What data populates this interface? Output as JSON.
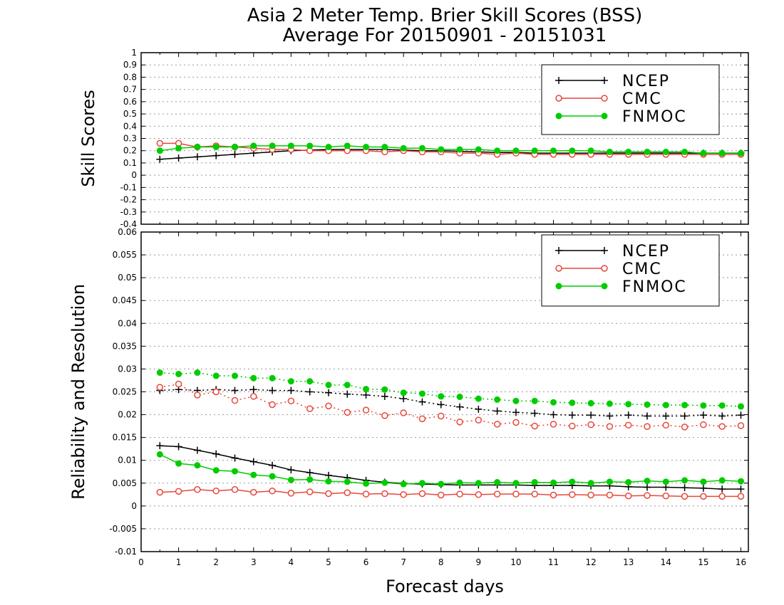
{
  "title": "Asia 2 Meter Temp. Brier Skill Scores (BSS)",
  "subtitle": "Average For 20150901 - 20151031",
  "chart_data": [
    {
      "type": "line",
      "ylabel": "Skill Scores",
      "xlabel": "",
      "xlim": [
        0,
        16.2
      ],
      "ylim": [
        -0.4,
        1.0
      ],
      "yticks": [
        "-0.4",
        "-0.3",
        "-0.2",
        "-0.1",
        "0",
        "0.1",
        "0.2",
        "0.3",
        "0.4",
        "0.5",
        "0.6",
        "0.7",
        "0.8",
        "0.9",
        "1"
      ],
      "grid": true,
      "legend_position": "top-right",
      "x": [
        0.5,
        1,
        1.5,
        2,
        2.5,
        3,
        3.5,
        4,
        4.5,
        5,
        5.5,
        6,
        6.5,
        7,
        7.5,
        8,
        8.5,
        9,
        9.5,
        10,
        10.5,
        11,
        11.5,
        12,
        12.5,
        13,
        13.5,
        14,
        14.5,
        15,
        15.5,
        16
      ],
      "series": [
        {
          "name": "NCEP",
          "color": "#000000",
          "marker": "plus",
          "style": "solid",
          "values": [
            0.13,
            0.14,
            0.15,
            0.16,
            0.17,
            0.18,
            0.19,
            0.2,
            0.205,
            0.21,
            0.21,
            0.21,
            0.21,
            0.205,
            0.2,
            0.2,
            0.195,
            0.19,
            0.185,
            0.185,
            0.18,
            0.18,
            0.18,
            0.18,
            0.18,
            0.18,
            0.18,
            0.18,
            0.18,
            0.18,
            0.18,
            0.18
          ]
        },
        {
          "name": "CMC",
          "color": "#e8473c",
          "marker": "open-circle",
          "style": "solid",
          "values": [
            0.26,
            0.26,
            0.23,
            0.24,
            0.23,
            0.22,
            0.21,
            0.21,
            0.2,
            0.2,
            0.2,
            0.2,
            0.19,
            0.2,
            0.19,
            0.19,
            0.18,
            0.18,
            0.17,
            0.18,
            0.17,
            0.17,
            0.17,
            0.17,
            0.17,
            0.17,
            0.17,
            0.17,
            0.17,
            0.17,
            0.17,
            0.17
          ]
        },
        {
          "name": "FNMOC",
          "color": "#00cc00",
          "marker": "filled-circle",
          "style": "solid",
          "values": [
            0.2,
            0.22,
            0.23,
            0.23,
            0.23,
            0.24,
            0.24,
            0.24,
            0.24,
            0.23,
            0.24,
            0.23,
            0.23,
            0.22,
            0.22,
            0.21,
            0.21,
            0.21,
            0.2,
            0.2,
            0.2,
            0.2,
            0.2,
            0.2,
            0.19,
            0.19,
            0.19,
            0.19,
            0.19,
            0.18,
            0.18,
            0.18
          ]
        }
      ]
    },
    {
      "type": "line",
      "ylabel": "Reliability and Resolution",
      "xlabel": "Forecast days",
      "xlim": [
        0,
        16.2
      ],
      "ylim": [
        -0.01,
        0.06
      ],
      "yticks": [
        "-0.01",
        "-0.005",
        "0",
        "0.005",
        "0.01",
        "0.015",
        "0.02",
        "0.025",
        "0.03",
        "0.035",
        "0.04",
        "0.045",
        "0.05",
        "0.055",
        "0.06"
      ],
      "xticks": [
        "0",
        "1",
        "2",
        "3",
        "4",
        "5",
        "6",
        "7",
        "8",
        "9",
        "10",
        "11",
        "12",
        "13",
        "14",
        "15",
        "16"
      ],
      "grid": true,
      "legend_position": "top-right",
      "legend": [
        "NCEP",
        "CMC",
        "FNMOC"
      ],
      "x": [
        0.5,
        1,
        1.5,
        2,
        2.5,
        3,
        3.5,
        4,
        4.5,
        5,
        5.5,
        6,
        6.5,
        7,
        7.5,
        8,
        8.5,
        9,
        9.5,
        10,
        10.5,
        11,
        11.5,
        12,
        12.5,
        13,
        13.5,
        14,
        14.5,
        15,
        15.5,
        16
      ],
      "series": [
        {
          "legend": "NCEP",
          "color": "#000000",
          "marker": "plus",
          "style": "dotted",
          "values": [
            0.0253,
            0.0255,
            0.0253,
            0.0255,
            0.0253,
            0.0255,
            0.0253,
            0.0253,
            0.025,
            0.0248,
            0.0245,
            0.0243,
            0.024,
            0.0235,
            0.0228,
            0.0222,
            0.0217,
            0.0212,
            0.0208,
            0.0205,
            0.0203,
            0.02,
            0.0199,
            0.0199,
            0.0197,
            0.0199,
            0.0197,
            0.0197,
            0.0197,
            0.0199,
            0.0197,
            0.0199
          ]
        },
        {
          "legend": "CMC",
          "color": "#e8473c",
          "marker": "open-circle",
          "style": "dotted",
          "values": [
            0.026,
            0.0267,
            0.0243,
            0.025,
            0.0231,
            0.024,
            0.0222,
            0.023,
            0.0213,
            0.0219,
            0.0205,
            0.021,
            0.0198,
            0.0204,
            0.0191,
            0.0197,
            0.0184,
            0.0188,
            0.0179,
            0.0183,
            0.0175,
            0.0179,
            0.0175,
            0.0178,
            0.0174,
            0.0177,
            0.0174,
            0.0177,
            0.0173,
            0.0178,
            0.0174,
            0.0176
          ]
        },
        {
          "legend": "FNMOC",
          "color": "#00cc00",
          "marker": "filled-circle",
          "style": "dotted",
          "values": [
            0.0292,
            0.0289,
            0.0292,
            0.0285,
            0.0285,
            0.028,
            0.028,
            0.0273,
            0.0273,
            0.0265,
            0.0265,
            0.0256,
            0.0255,
            0.0248,
            0.0246,
            0.024,
            0.0239,
            0.0235,
            0.0233,
            0.023,
            0.023,
            0.0227,
            0.0226,
            0.0225,
            0.0224,
            0.0223,
            0.0222,
            0.0221,
            0.0221,
            0.022,
            0.022,
            0.0218
          ]
        },
        {
          "legend": "NCEP",
          "color": "#000000",
          "marker": "plus",
          "style": "solid",
          "values": [
            0.0132,
            0.013,
            0.0122,
            0.0114,
            0.0105,
            0.0097,
            0.0089,
            0.0079,
            0.0073,
            0.0067,
            0.0062,
            0.0056,
            0.0052,
            0.0049,
            0.0048,
            0.0047,
            0.0046,
            0.0046,
            0.0046,
            0.0046,
            0.0045,
            0.0045,
            0.0045,
            0.0044,
            0.0044,
            0.0042,
            0.0041,
            0.0041,
            0.004,
            0.0039,
            0.0037,
            0.0037
          ]
        },
        {
          "legend": "CMC",
          "color": "#e8473c",
          "marker": "open-circle",
          "style": "solid",
          "values": [
            0.003,
            0.0032,
            0.0036,
            0.0033,
            0.0036,
            0.003,
            0.0033,
            0.0028,
            0.0031,
            0.0027,
            0.0029,
            0.0026,
            0.0027,
            0.0025,
            0.0027,
            0.0024,
            0.0026,
            0.0025,
            0.0026,
            0.0026,
            0.0026,
            0.0024,
            0.0025,
            0.0024,
            0.0024,
            0.0022,
            0.0023,
            0.0022,
            0.0021,
            0.0021,
            0.0021,
            0.0021
          ]
        },
        {
          "legend": "FNMOC",
          "color": "#00cc00",
          "marker": "filled-circle",
          "style": "solid",
          "values": [
            0.0113,
            0.0093,
            0.0089,
            0.0078,
            0.0076,
            0.0068,
            0.0065,
            0.0057,
            0.0058,
            0.0054,
            0.0053,
            0.0049,
            0.0051,
            0.0048,
            0.005,
            0.0048,
            0.0051,
            0.005,
            0.0052,
            0.005,
            0.0052,
            0.0051,
            0.0053,
            0.005,
            0.0053,
            0.0052,
            0.0055,
            0.0053,
            0.0056,
            0.0053,
            0.0056,
            0.0054
          ]
        }
      ]
    }
  ]
}
